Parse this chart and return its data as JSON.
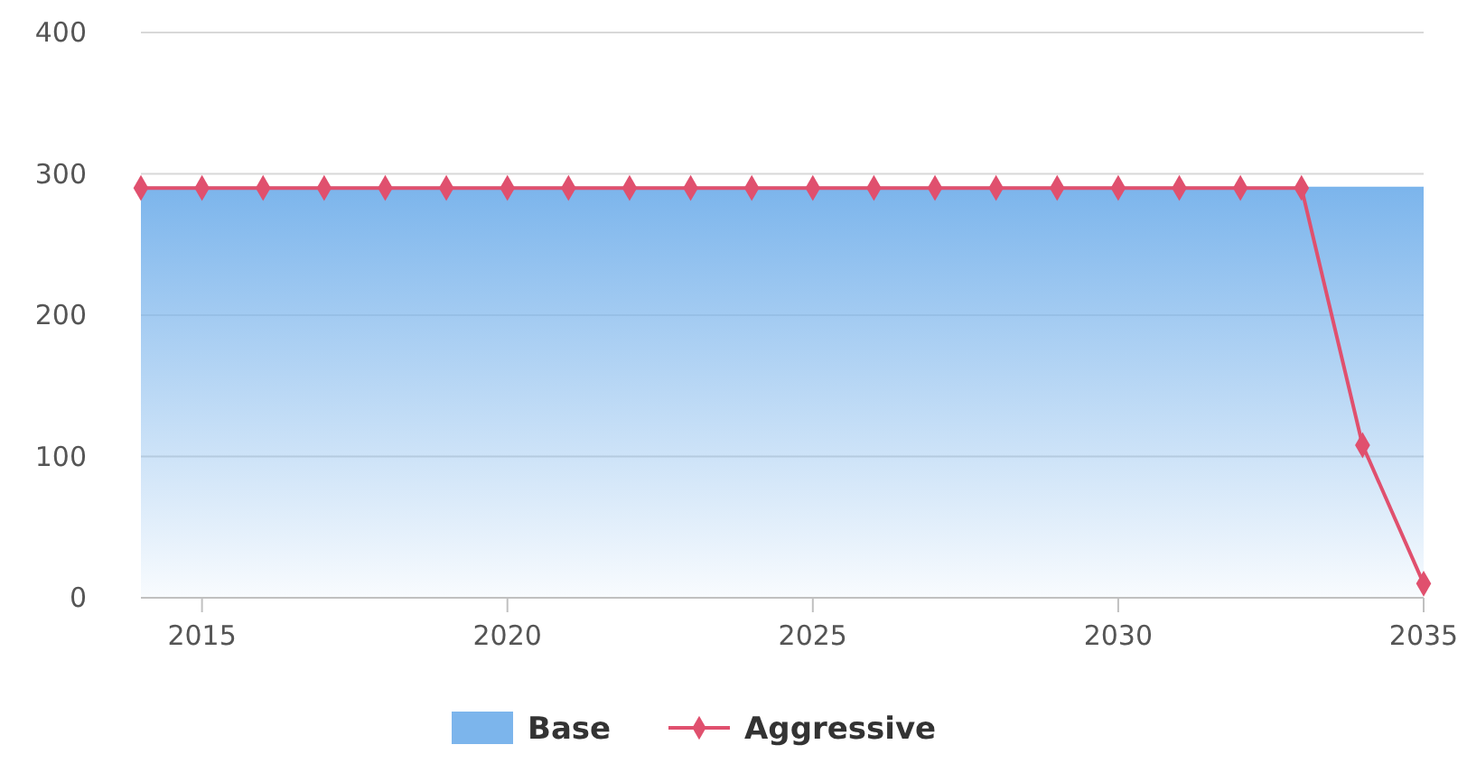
{
  "chart_data": {
    "type": "area",
    "x": [
      2014,
      2015,
      2016,
      2017,
      2018,
      2019,
      2020,
      2021,
      2022,
      2023,
      2024,
      2025,
      2026,
      2027,
      2028,
      2029,
      2030,
      2031,
      2032,
      2033,
      2034,
      2035
    ],
    "series": [
      {
        "name": "Base",
        "type": "area",
        "color": "#7cb5ec",
        "marker": "none",
        "values": [
          290,
          290,
          290,
          290,
          290,
          290,
          290,
          290,
          290,
          290,
          290,
          290,
          290,
          290,
          290,
          290,
          290,
          290,
          290,
          290,
          290,
          290
        ]
      },
      {
        "name": "Aggressive",
        "type": "line",
        "color": "#e0506e",
        "marker": "diamond",
        "values": [
          290,
          290,
          290,
          290,
          290,
          290,
          290,
          290,
          290,
          290,
          290,
          290,
          290,
          290,
          290,
          290,
          290,
          290,
          290,
          290,
          108,
          10
        ]
      }
    ],
    "xlim": [
      2014,
      2035
    ],
    "xticks": [
      2015,
      2020,
      2025,
      2030,
      2035
    ],
    "ylim": [
      0,
      400
    ],
    "yticks": [
      0,
      100,
      200,
      300,
      400
    ],
    "grid": "y",
    "legend": "bottom"
  }
}
